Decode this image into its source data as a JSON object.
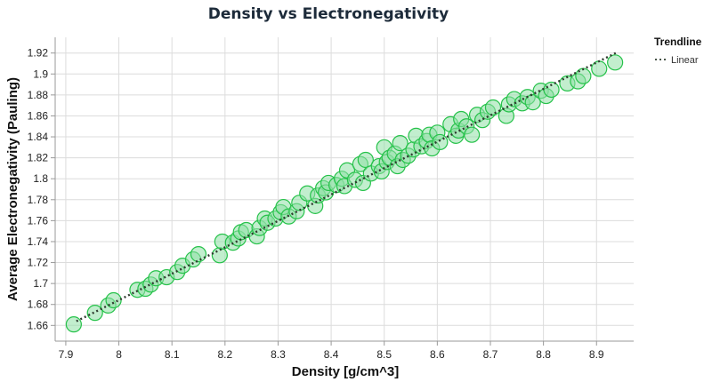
{
  "chart_data": {
    "type": "scatter",
    "title": "Density vs Electronegativity",
    "xlabel": "Density [g/cm^3]",
    "ylabel": "Average Electronegativity (Pauling)",
    "xlim": [
      7.88,
      8.97
    ],
    "ylim": [
      1.645,
      1.935
    ],
    "x_ticks": [
      7.9,
      8,
      8.1,
      8.2,
      8.3,
      8.4,
      8.5,
      8.6,
      8.7,
      8.8,
      8.9
    ],
    "x_tick_labels": [
      "7.9",
      "8",
      "8.1",
      "8.2",
      "8.3",
      "8.4",
      "8.5",
      "8.6",
      "8.7",
      "8.8",
      "8.9"
    ],
    "y_ticks": [
      1.66,
      1.68,
      1.7,
      1.72,
      1.74,
      1.76,
      1.78,
      1.8,
      1.82,
      1.84,
      1.86,
      1.88,
      1.9,
      1.92
    ],
    "y_tick_labels": [
      "1.66",
      "1.68",
      "1.7",
      "1.72",
      "1.74",
      "1.76",
      "1.78",
      "1.8",
      "1.82",
      "1.84",
      "1.86",
      "1.88",
      "1.9",
      "1.92"
    ],
    "grid": true,
    "legend": {
      "title": "Trendline",
      "entries": [
        "Linear"
      ],
      "placement": "right"
    },
    "colors": {
      "point_fill": "#8fe0a5",
      "point_stroke": "#26c24a",
      "trendline": "#2e3b2e"
    },
    "trendline": {
      "type": "linear",
      "x": [
        7.92,
        8.94
      ],
      "y": [
        1.664,
        1.921
      ]
    },
    "series": [
      {
        "name": "samples",
        "x": [
          7.915,
          7.955,
          7.98,
          7.99,
          8.035,
          8.05,
          8.06,
          8.07,
          8.09,
          8.11,
          8.12,
          8.14,
          8.15,
          8.19,
          8.195,
          8.215,
          8.225,
          8.23,
          8.24,
          8.26,
          8.265,
          8.275,
          8.28,
          8.295,
          8.305,
          8.31,
          8.32,
          8.335,
          8.34,
          8.355,
          8.37,
          8.375,
          8.385,
          8.39,
          8.395,
          8.41,
          8.42,
          8.425,
          8.43,
          8.445,
          8.455,
          8.46,
          8.465,
          8.475,
          8.49,
          8.495,
          8.5,
          8.505,
          8.51,
          8.52,
          8.525,
          8.53,
          8.535,
          8.545,
          8.555,
          8.56,
          8.57,
          8.58,
          8.585,
          8.59,
          8.6,
          8.605,
          8.625,
          8.635,
          8.64,
          8.645,
          8.655,
          8.665,
          8.675,
          8.685,
          8.695,
          8.705,
          8.73,
          8.735,
          8.745,
          8.76,
          8.77,
          8.78,
          8.795,
          8.805,
          8.815,
          8.845,
          8.865,
          8.875,
          8.905,
          8.935
        ],
        "y": [
          1.661,
          1.672,
          1.679,
          1.684,
          1.694,
          1.695,
          1.699,
          1.705,
          1.706,
          1.711,
          1.717,
          1.723,
          1.728,
          1.727,
          1.74,
          1.739,
          1.743,
          1.749,
          1.751,
          1.745,
          1.753,
          1.762,
          1.758,
          1.762,
          1.768,
          1.773,
          1.764,
          1.769,
          1.777,
          1.786,
          1.774,
          1.784,
          1.791,
          1.787,
          1.796,
          1.794,
          1.8,
          1.793,
          1.808,
          1.799,
          1.814,
          1.796,
          1.818,
          1.805,
          1.812,
          1.807,
          1.83,
          1.816,
          1.82,
          1.824,
          1.812,
          1.834,
          1.818,
          1.822,
          1.828,
          1.841,
          1.831,
          1.836,
          1.842,
          1.829,
          1.844,
          1.835,
          1.852,
          1.841,
          1.846,
          1.857,
          1.85,
          1.842,
          1.861,
          1.856,
          1.864,
          1.868,
          1.86,
          1.871,
          1.876,
          1.872,
          1.878,
          1.873,
          1.884,
          1.879,
          1.885,
          1.891,
          1.893,
          1.898,
          1.905,
          1.911
        ],
        "size": 15
      }
    ]
  }
}
